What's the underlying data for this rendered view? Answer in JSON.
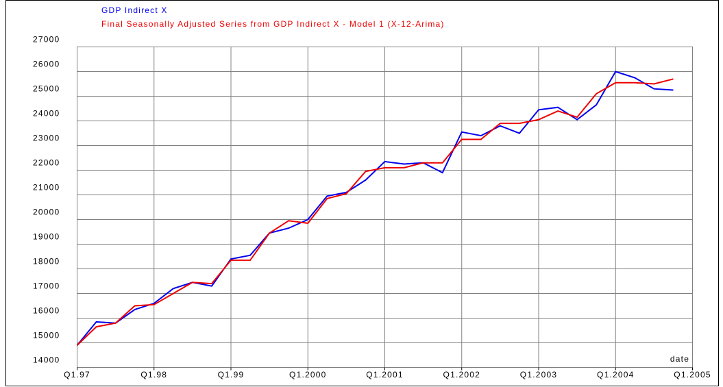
{
  "chart_data": {
    "type": "line",
    "xlabel": "date",
    "xlim": [
      1997,
      2005
    ],
    "xticks": [
      {
        "value": 1997,
        "label": "Q1.97"
      },
      {
        "value": 1998,
        "label": "Q1.98"
      },
      {
        "value": 1999,
        "label": "Q1.99"
      },
      {
        "value": 2000,
        "label": "Q1.2000"
      },
      {
        "value": 2001,
        "label": "Q1.2001"
      },
      {
        "value": 2002,
        "label": "Q1.2002"
      },
      {
        "value": 2003,
        "label": "Q1.2003"
      },
      {
        "value": 2004,
        "label": "Q1.2004"
      },
      {
        "value": 2005,
        "label": "Q1.2005"
      }
    ],
    "ylim": [
      14000,
      27000
    ],
    "yticks": [
      14000,
      15000,
      16000,
      17000,
      18000,
      19000,
      20000,
      21000,
      22000,
      23000,
      24000,
      25000,
      26000,
      27000
    ],
    "grid": true,
    "legend": "top-left",
    "x": [
      1997,
      1997.25,
      1997.5,
      1997.75,
      1998,
      1998.25,
      1998.5,
      1998.75,
      1999,
      1999.25,
      1999.5,
      1999.75,
      2000,
      2000.25,
      2000.5,
      2000.75,
      2001,
      2001.25,
      2001.5,
      2001.75,
      2002,
      2002.25,
      2002.5,
      2002.75,
      2003,
      2003.25,
      2003.5,
      2003.75,
      2004,
      2004.25,
      2004.5,
      2004.75
    ],
    "series": [
      {
        "name": "GDP Indirect X",
        "color": "#0000ee",
        "values": [
          14900,
          15850,
          15800,
          16350,
          16600,
          17200,
          17450,
          17300,
          18400,
          18550,
          19450,
          19650,
          20000,
          20950,
          21100,
          21600,
          22350,
          22250,
          22300,
          21900,
          23550,
          23400,
          23800,
          23500,
          24450,
          24550,
          24050,
          24650,
          26000,
          25750,
          25300,
          25250
        ]
      },
      {
        "name": "Final Seasonally Adjusted Series from GDP Indirect X - Model 1 (X-12-Arima)",
        "color": "#ee0000",
        "values": [
          14900,
          15650,
          15800,
          16500,
          16550,
          17000,
          17450,
          17400,
          18350,
          18350,
          19450,
          19950,
          19850,
          20850,
          21050,
          21950,
          22100,
          22100,
          22300,
          22300,
          23250,
          23250,
          23900,
          23900,
          24050,
          24400,
          24150,
          25100,
          25550,
          25550,
          25500,
          25700
        ]
      }
    ]
  }
}
